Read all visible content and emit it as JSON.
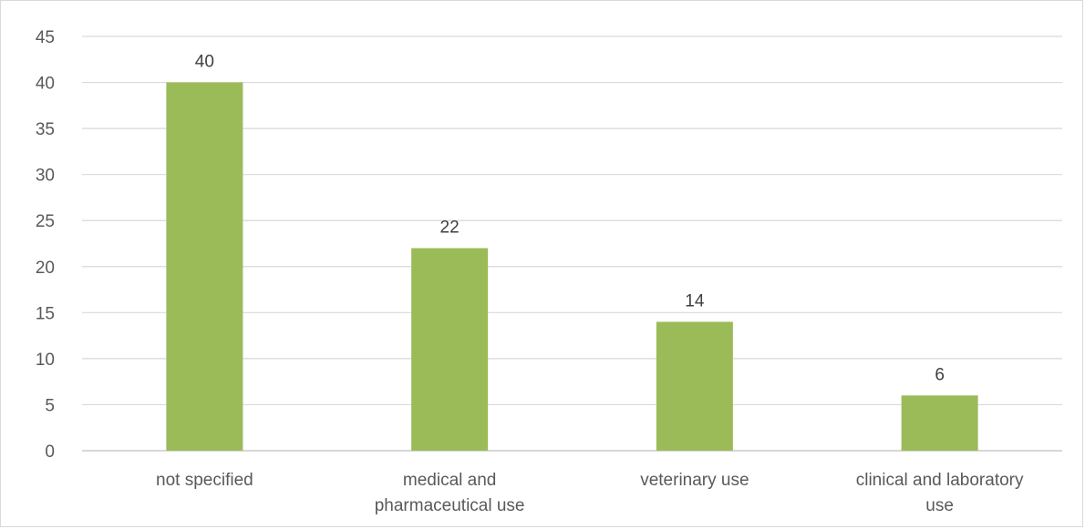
{
  "chart_data": {
    "type": "bar",
    "categories": [
      [
        "not specified"
      ],
      [
        "medical and",
        "pharmaceutical use"
      ],
      [
        "veterinary use"
      ],
      [
        "clinical and laboratory",
        "use"
      ]
    ],
    "values": [
      40,
      22,
      14,
      6
    ],
    "data_labels": [
      "40",
      "22",
      "14",
      "6"
    ],
    "yticks": [
      "0",
      "5",
      "10",
      "15",
      "20",
      "25",
      "30",
      "35",
      "40",
      "45"
    ],
    "ylim": [
      0,
      45
    ],
    "grid": true,
    "legend": "none",
    "colors": {
      "bar": "#9bbb59",
      "grid": "#d9d9d9",
      "axis": "#bfbfbf",
      "text": "#595959"
    }
  }
}
